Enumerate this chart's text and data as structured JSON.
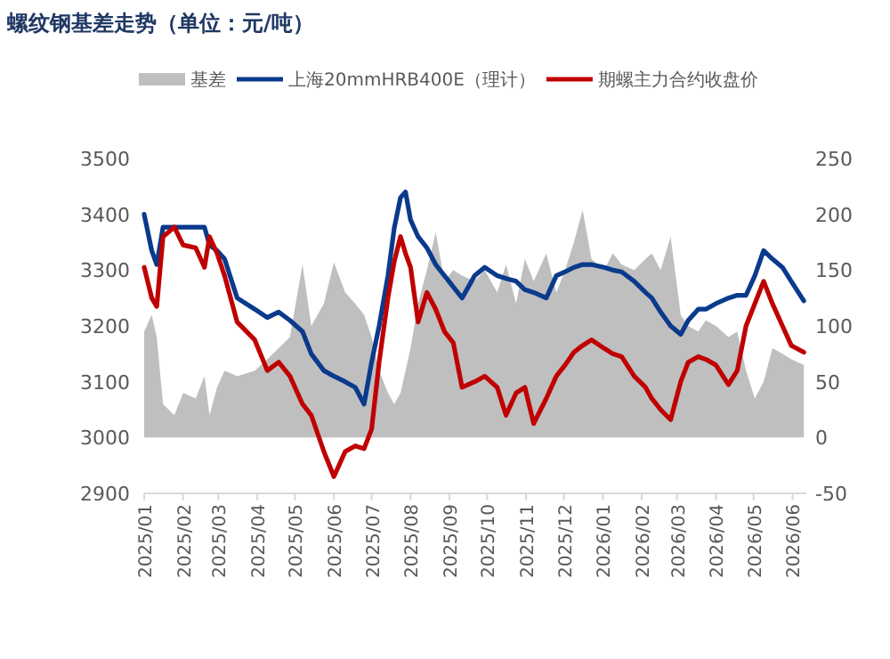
{
  "chart_data": {
    "type": "line",
    "title": "螺纹钢基差走势（单位：元/吨）",
    "legend": "top",
    "x": [
      "2025-01-01",
      "2025-01-07",
      "2025-01-11",
      "2025-01-16",
      "2025-01-25",
      "2025-02-01",
      "2025-02-11",
      "2025-02-18",
      "2025-02-22",
      "2025-02-28",
      "2025-03-06",
      "2025-03-16",
      "2025-03-30",
      "2025-04-09",
      "2025-04-18",
      "2025-04-27",
      "2025-05-07",
      "2025-05-14",
      "2025-05-24",
      "2025-06-01",
      "2025-06-10",
      "2025-06-18",
      "2025-06-25",
      "2025-07-01",
      "2025-07-07",
      "2025-07-14",
      "2025-07-19",
      "2025-07-24",
      "2025-07-28",
      "2025-08-01",
      "2025-08-07",
      "2025-08-14",
      "2025-08-21",
      "2025-08-28",
      "2025-09-04",
      "2025-09-11",
      "2025-09-21",
      "2025-09-29",
      "2025-10-09",
      "2025-10-16",
      "2025-10-24",
      "2025-10-31",
      "2025-11-07",
      "2025-11-17",
      "2025-11-25",
      "2025-12-02",
      "2025-12-09",
      "2025-12-16",
      "2025-12-23",
      "2026-01-02",
      "2026-01-09",
      "2026-01-16",
      "2026-01-26",
      "2026-02-04",
      "2026-02-09",
      "2026-02-16",
      "2026-02-24",
      "2026-03-04",
      "2026-03-10",
      "2026-03-18",
      "2026-03-24",
      "2026-04-01",
      "2026-04-11",
      "2026-04-18",
      "2026-04-25",
      "2026-05-02",
      "2026-05-09",
      "2026-05-16",
      "2026-05-24",
      "2026-05-31",
      "2026-06-10"
    ],
    "xlim": [
      "2025-01-01",
      "2026-06-12"
    ],
    "xticks": [
      {
        "value": "2025-01",
        "label": "2025/01"
      },
      {
        "value": "2025-02",
        "label": "2025/02"
      },
      {
        "value": "2025-03",
        "label": "2025/03"
      },
      {
        "value": "2025-04",
        "label": "2025/04"
      },
      {
        "value": "2025-05",
        "label": "2025/05"
      },
      {
        "value": "2025-06",
        "label": "2025/06"
      },
      {
        "value": "2025-07",
        "label": "2025/07"
      },
      {
        "value": "2025-08",
        "label": "2025/08"
      },
      {
        "value": "2025-09",
        "label": "2025/09"
      },
      {
        "value": "2025-10",
        "label": "2025/10"
      },
      {
        "value": "2025-11",
        "label": "2025/11"
      },
      {
        "value": "2025-12",
        "label": "2025/12"
      },
      {
        "value": "2026-01",
        "label": "2026/01"
      },
      {
        "value": "2026-02",
        "label": "2026/02"
      },
      {
        "value": "2026-03",
        "label": "2026/03"
      },
      {
        "value": "2026-04",
        "label": "2026/04"
      },
      {
        "value": "2026-05",
        "label": "2026/05"
      },
      {
        "value": "2026-06",
        "label": "2026/06"
      }
    ],
    "ylim": [
      2900,
      3500
    ],
    "yticks": [
      2900,
      3000,
      3100,
      3200,
      3300,
      3400,
      3500
    ],
    "y2lim": [
      -50,
      250
    ],
    "y2ticks": [
      -50,
      0,
      50,
      100,
      150,
      200,
      250
    ],
    "series": [
      {
        "name": "基差",
        "type": "area",
        "axis": "y2",
        "color": "#bfbfbf",
        "values": [
          95,
          110,
          90,
          30,
          20,
          40,
          35,
          55,
          20,
          45,
          60,
          55,
          60,
          70,
          80,
          90,
          155,
          100,
          120,
          157,
          130,
          120,
          110,
          90,
          60,
          40,
          30,
          40,
          60,
          80,
          120,
          150,
          184,
          140,
          150,
          145,
          140,
          150,
          130,
          155,
          120,
          160,
          140,
          165,
          130,
          150,
          175,
          204,
          160,
          150,
          165,
          155,
          150,
          160,
          165,
          150,
          180,
          110,
          100,
          95,
          105,
          100,
          90,
          95,
          60,
          35,
          50,
          80,
          75,
          70,
          65
        ]
      },
      {
        "name": "上海20mmHRB400E（理计）",
        "type": "line",
        "color": "#0a3a8c",
        "values": [
          3400,
          3335,
          3310,
          3377,
          3377,
          3377,
          3377,
          3377,
          3345,
          3335,
          3320,
          3250,
          3230,
          3215,
          3225,
          3210,
          3190,
          3150,
          3120,
          3110,
          3100,
          3090,
          3060,
          3135,
          3200,
          3290,
          3375,
          3430,
          3440,
          3390,
          3360,
          3340,
          3310,
          3290,
          3270,
          3250,
          3290,
          3305,
          3290,
          3285,
          3280,
          3265,
          3260,
          3250,
          3290,
          3297,
          3305,
          3310,
          3310,
          3305,
          3300,
          3297,
          3280,
          3260,
          3250,
          3225,
          3200,
          3185,
          3210,
          3230,
          3230,
          3240,
          3250,
          3255,
          3255,
          3290,
          3335,
          3320,
          3305,
          3280,
          3245
        ]
      },
      {
        "name": "期螺主力合约收盘价",
        "type": "line",
        "color": "#c00000",
        "values": [
          3305,
          3250,
          3235,
          3360,
          3377,
          3345,
          3340,
          3305,
          3360,
          3330,
          3290,
          3207,
          3175,
          3120,
          3135,
          3110,
          3060,
          3040,
          2975,
          2930,
          2975,
          2985,
          2980,
          3015,
          3135,
          3250,
          3315,
          3360,
          3330,
          3305,
          3207,
          3260,
          3230,
          3190,
          3170,
          3090,
          3100,
          3110,
          3090,
          3040,
          3080,
          3090,
          3025,
          3070,
          3110,
          3130,
          3153,
          3165,
          3175,
          3160,
          3150,
          3145,
          3110,
          3090,
          3070,
          3050,
          3032,
          3100,
          3135,
          3145,
          3140,
          3130,
          3095,
          3120,
          3200,
          3240,
          3280,
          3240,
          3200,
          3165,
          3153
        ]
      }
    ]
  }
}
